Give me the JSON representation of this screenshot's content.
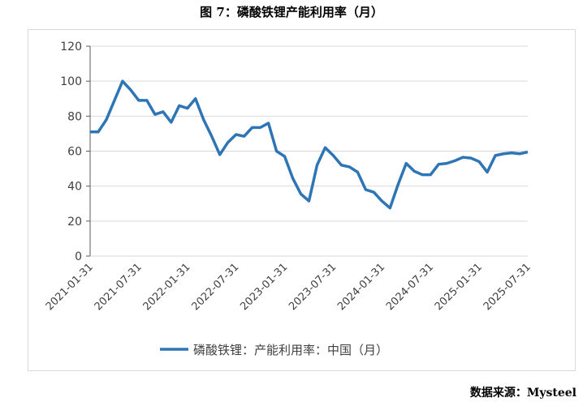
{
  "title": "图 7：磷酸铁锂产能利用率（月）",
  "source": "数据来源：Mysteel",
  "chart_data": {
    "type": "line",
    "title": "图 7：磷酸铁锂产能利用率（月）",
    "ylim": [
      0,
      120
    ],
    "yticks": [
      0,
      20,
      40,
      60,
      80,
      100,
      120
    ],
    "xtick_labels": [
      "2021-01-31",
      "2021-07-31",
      "2022-01-31",
      "2022-07-31",
      "2023-01-31",
      "2023-07-31",
      "2024-01-31",
      "2024-07-31",
      "2025-01-31",
      "2025-07-31"
    ],
    "grid": "horizontal",
    "legend_position": "bottom",
    "color": "#2e75b6",
    "series": [
      {
        "name": "磷酸铁锂：产能利用率：中国（月）",
        "start": "2021-01-31",
        "frequency": "monthly",
        "values": [
          71,
          71,
          78,
          89,
          100,
          95,
          89,
          89,
          81,
          82.5,
          76.5,
          86,
          84.5,
          90,
          78,
          68.5,
          58,
          65,
          69.5,
          68.5,
          73.5,
          73.5,
          76,
          60,
          57,
          44.5,
          35.5,
          31.5,
          52,
          62,
          57.5,
          52,
          51,
          48,
          38,
          36.5,
          31.5,
          27.5,
          41,
          53,
          48.5,
          46.5,
          46.5,
          52.5,
          53,
          54.5,
          56.5,
          56,
          54,
          48,
          57.5,
          58.5,
          59,
          58.5,
          59.5
        ]
      }
    ]
  }
}
